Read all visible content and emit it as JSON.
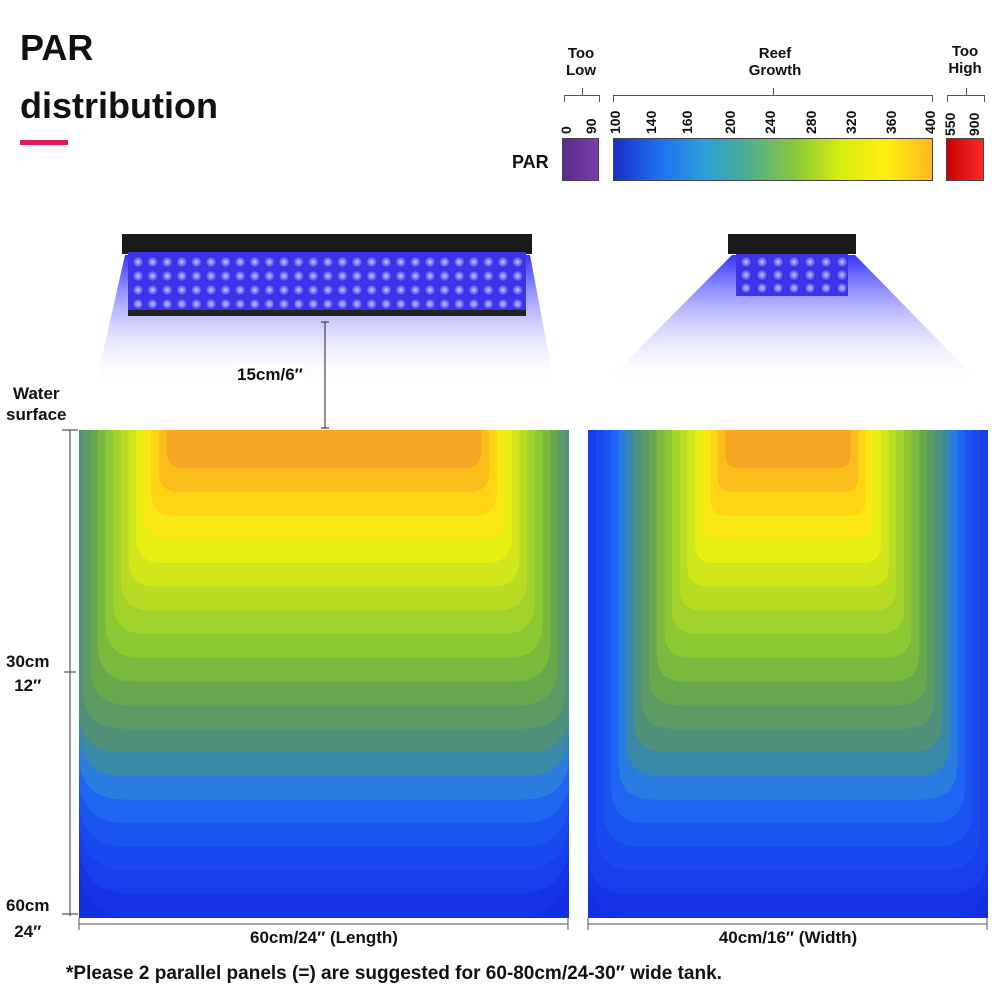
{
  "title": {
    "line1": "PAR",
    "line2": "distribution"
  },
  "legend": {
    "par_label": "PAR",
    "too_low": "Too\nLow",
    "reef_growth": "Reef\nGrowth",
    "too_high": "Too\nHigh",
    "low_ticks": [
      "0",
      "90"
    ],
    "reef_ticks": [
      "100",
      "140",
      "160",
      "200",
      "240",
      "280",
      "320",
      "360",
      "400"
    ],
    "high_ticks": [
      "550",
      "900"
    ],
    "colors": {
      "too_low": [
        "#5a2a8c",
        "#7a3ea8"
      ],
      "reef": [
        "#1830c8",
        "#1f6ff0",
        "#2aa0d8",
        "#4fb08a",
        "#8cc83a",
        "#d6ee10",
        "#ffee10",
        "#ffb820"
      ],
      "too_high": [
        "#c80000",
        "#ff2a2a"
      ]
    }
  },
  "fixture": {
    "gap_label": "15cm/6″"
  },
  "axis": {
    "water_surface": "Water\nsurface",
    "depth_30": "30cm\n12″",
    "depth_60": "60cm\n24″"
  },
  "panels": {
    "length_label": "60cm/24″  (Length)",
    "width_label": "40cm/16″  (Width)"
  },
  "footnote": "*Please 2 parallel panels (=) are suggested for 60-80cm/24-30″ wide tank."
}
